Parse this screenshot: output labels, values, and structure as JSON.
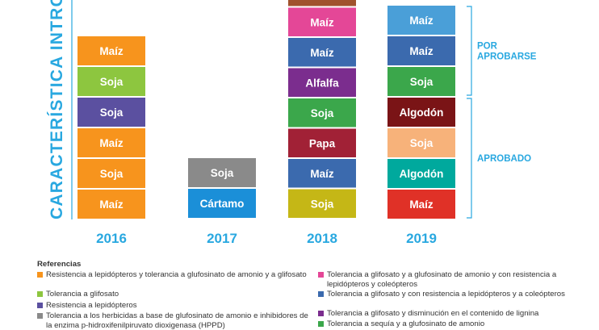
{
  "chart_data": {
    "type": "stacked-blocks",
    "ylabel": "CARACTERÍSTICA INTRODU",
    "categories": [
      "2016",
      "2017",
      "2018",
      "2019"
    ],
    "series": [
      {
        "year": "2016",
        "blocks": [
          {
            "label": "Maíz",
            "color": "#f7941d"
          },
          {
            "label": "Soja",
            "color": "#f7941d"
          },
          {
            "label": "Maíz",
            "color": "#f7941d"
          },
          {
            "label": "Soja",
            "color": "#5b50a0"
          },
          {
            "label": "Soja",
            "color": "#8dc63f"
          },
          {
            "label": "Maíz",
            "color": "#f7941d"
          }
        ]
      },
      {
        "year": "2017",
        "blocks": [
          {
            "label": "Cártamo",
            "color": "#1b8fd8"
          },
          {
            "label": "Soja",
            "color": "#8a8a8a"
          }
        ]
      },
      {
        "year": "2018",
        "blocks": [
          {
            "label": "Soja",
            "color": "#c5b716"
          },
          {
            "label": "Maíz",
            "color": "#3b6aae"
          },
          {
            "label": "Papa",
            "color": "#a12136"
          },
          {
            "label": "Soja",
            "color": "#3ba74b"
          },
          {
            "label": "Alfalfa",
            "color": "#7b2d8e"
          },
          {
            "label": "Maíz",
            "color": "#3b6aae"
          },
          {
            "label": "Maíz",
            "color": "#e44797"
          },
          {
            "label": "",
            "color": "#a0522d"
          }
        ]
      },
      {
        "year": "2019",
        "blocks": [
          {
            "label": "Maíz",
            "color": "#e03127"
          },
          {
            "label": "Algodón",
            "color": "#00a99d"
          },
          {
            "label": "Soja",
            "color": "#f7b27a"
          },
          {
            "label": "Algodón",
            "color": "#7a1416"
          },
          {
            "label": "Soja",
            "color": "#3ba74b"
          },
          {
            "label": "Maíz",
            "color": "#3b6aae"
          },
          {
            "label": "Maíz",
            "color": "#4a9fd8"
          }
        ]
      }
    ],
    "brackets": [
      {
        "label": "APROBADO",
        "from_block": 0,
        "to_block": 3
      },
      {
        "label": [
          "POR",
          "APROBARSE"
        ],
        "from_block": 4,
        "to_block": 6
      }
    ],
    "colors": {
      "year_label": "#29a8e0",
      "bracket": "#29a8e0"
    }
  },
  "legend": {
    "title": "Referencias",
    "left": [
      {
        "text": "Resistencia a lepidópteros y tolerancia a glufosinato de amonio y a glifosato",
        "color": "#f7941d"
      },
      {
        "text": "Tolerancia a glifosato",
        "color": "#8dc63f"
      },
      {
        "text": "Resistencia a lepidópteros",
        "color": "#5b50a0"
      },
      {
        "text": "Tolerancia a los herbicidas a base de glufosinato de amonio e inhibidores de la enzima p-hidroxifenilpiruvato dioxigenasa (HPPD)",
        "color": "#8a8a8a"
      }
    ],
    "right": [
      {
        "text": "Tolerancia a glifosato y a glufosinato de amonio y con resistencia a lepidópteros y coleópteros",
        "color": "#e44797"
      },
      {
        "text": "Tolerancia a glifosato y con resistencia a lepidópteros y a coleópteros",
        "color": "#3b6aae"
      },
      {
        "text": "Tolerancia a glifosato y disminución en el contenido de lignina",
        "color": "#7b2d8e"
      },
      {
        "text": "Tolerancia a sequía y a glufosinato de amonio",
        "color": "#3ba74b"
      }
    ]
  }
}
